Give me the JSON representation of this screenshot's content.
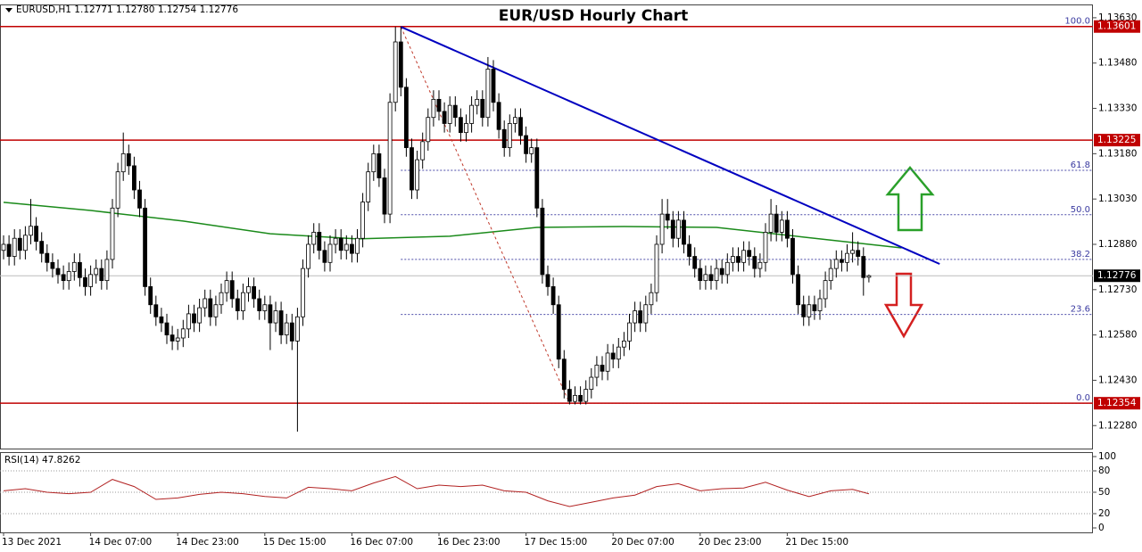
{
  "chart_data": {
    "type": "candlestick",
    "title": "EUR/USD Hourly Chart",
    "header": "EURUSD,H1  1.12771 1.12780 1.12754 1.12776",
    "ylim": [
      1.12204,
      1.13674
    ],
    "yticks": [
      {
        "value": 1.1363,
        "label": "1.13630"
      },
      {
        "value": 1.1348,
        "label": "1.13480"
      },
      {
        "value": 1.1333,
        "label": "1.13330"
      },
      {
        "value": 1.1318,
        "label": "1.13180"
      },
      {
        "value": 1.1303,
        "label": "1.13030"
      },
      {
        "value": 1.1288,
        "label": "1.12880"
      },
      {
        "value": 1.1273,
        "label": "1.12730"
      },
      {
        "value": 1.1258,
        "label": "1.12580"
      },
      {
        "value": 1.1243,
        "label": "1.12430"
      },
      {
        "value": 1.1228,
        "label": "1.12280"
      }
    ],
    "categories": [
      "13 Dec 2021",
      null,
      null,
      null,
      null,
      null,
      null,
      null,
      null,
      null,
      null,
      null,
      null,
      null,
      null,
      null,
      "14 Dec 07:00",
      null,
      null,
      null,
      null,
      null,
      null,
      null,
      null,
      null,
      null,
      null,
      null,
      null,
      null,
      null,
      "14 Dec 23:00",
      null,
      null,
      null,
      null,
      null,
      null,
      null,
      null,
      null,
      null,
      null,
      null,
      null,
      null,
      null,
      "15 Dec 15:00",
      null,
      null,
      null,
      null,
      null,
      null,
      null,
      null,
      null,
      null,
      null,
      null,
      null,
      null,
      null,
      "16 Dec 07:00",
      null,
      null,
      null,
      null,
      null,
      null,
      null,
      null,
      null,
      null,
      null,
      null,
      null,
      null,
      null,
      "16 Dec 23:00",
      null,
      null,
      null,
      null,
      null,
      null,
      null,
      null,
      null,
      null,
      null,
      null,
      null,
      null,
      null,
      "17 Dec 15:00",
      null,
      null,
      null,
      null,
      null,
      null,
      null,
      null,
      null,
      null,
      null,
      null,
      null,
      null,
      null,
      "20 Dec 07:00",
      null,
      null,
      null,
      null,
      null,
      null,
      null,
      null,
      null,
      null,
      null,
      null,
      null,
      null,
      null,
      "20 Dec 23:00",
      null,
      null,
      null,
      null,
      null,
      null,
      null,
      null,
      null,
      null,
      null,
      null,
      null,
      null,
      null,
      "21 Dec 15:00",
      null,
      null,
      null,
      null,
      null,
      null,
      null,
      null,
      null,
      null,
      null,
      null,
      null,
      null,
      null
    ],
    "values": [
      [
        1.1286,
        1.1291,
        1.1283,
        1.1288
      ],
      [
        1.1288,
        1.1291,
        1.1281,
        1.1284
      ],
      [
        1.1284,
        1.1293,
        1.1281,
        1.129
      ],
      [
        1.129,
        1.1293,
        1.1283,
        1.1286
      ],
      [
        1.1286,
        1.1294,
        1.1283,
        1.1291
      ],
      [
        1.1291,
        1.1303,
        1.1288,
        1.1294
      ],
      [
        1.1294,
        1.1297,
        1.1286,
        1.1289
      ],
      [
        1.1289,
        1.1292,
        1.1282,
        1.1285
      ],
      [
        1.1285,
        1.1288,
        1.1279,
        1.1282
      ],
      [
        1.1282,
        1.1285,
        1.1277,
        1.128
      ],
      [
        1.128,
        1.1283,
        1.1275,
        1.1278
      ],
      [
        1.1278,
        1.1281,
        1.1273,
        1.1276
      ],
      [
        1.1276,
        1.1282,
        1.1273,
        1.1279
      ],
      [
        1.1279,
        1.1285,
        1.1276,
        1.1282
      ],
      [
        1.1282,
        1.1285,
        1.1274,
        1.1277
      ],
      [
        1.1277,
        1.128,
        1.1271,
        1.1274
      ],
      [
        1.1274,
        1.1281,
        1.1271,
        1.1278
      ],
      [
        1.1278,
        1.1283,
        1.1275,
        1.128
      ],
      [
        1.128,
        1.1283,
        1.1273,
        1.1276
      ],
      [
        1.1276,
        1.1286,
        1.1273,
        1.1283
      ],
      [
        1.1283,
        1.1303,
        1.128,
        1.13
      ],
      [
        1.13,
        1.1315,
        1.1297,
        1.1312
      ],
      [
        1.1312,
        1.1325,
        1.1309,
        1.1318
      ],
      [
        1.1318,
        1.1321,
        1.1311,
        1.1314
      ],
      [
        1.1314,
        1.1317,
        1.1303,
        1.1306
      ],
      [
        1.1306,
        1.1309,
        1.1297,
        1.13
      ],
      [
        1.13,
        1.1303,
        1.1271,
        1.1274
      ],
      [
        1.1274,
        1.1277,
        1.1265,
        1.1268
      ],
      [
        1.1268,
        1.1271,
        1.1261,
        1.1264
      ],
      [
        1.1264,
        1.1267,
        1.1259,
        1.1262
      ],
      [
        1.1262,
        1.1265,
        1.1255,
        1.1258
      ],
      [
        1.1258,
        1.1261,
        1.1253,
        1.1256
      ],
      [
        1.1256,
        1.126,
        1.1253,
        1.1257
      ],
      [
        1.1257,
        1.1263,
        1.1254,
        1.126
      ],
      [
        1.126,
        1.1268,
        1.1257,
        1.1265
      ],
      [
        1.1265,
        1.1268,
        1.1259,
        1.1262
      ],
      [
        1.1262,
        1.127,
        1.1259,
        1.1267
      ],
      [
        1.1267,
        1.1273,
        1.1264,
        1.127
      ],
      [
        1.127,
        1.1273,
        1.1261,
        1.1264
      ],
      [
        1.1264,
        1.1271,
        1.1261,
        1.1268
      ],
      [
        1.1268,
        1.1275,
        1.1265,
        1.1272
      ],
      [
        1.1272,
        1.1279,
        1.1269,
        1.1276
      ],
      [
        1.1276,
        1.1279,
        1.1267,
        1.127
      ],
      [
        1.127,
        1.1273,
        1.1263,
        1.1266
      ],
      [
        1.1266,
        1.1275,
        1.1263,
        1.1272
      ],
      [
        1.1272,
        1.1277,
        1.1269,
        1.1274
      ],
      [
        1.1274,
        1.1277,
        1.1267,
        1.127
      ],
      [
        1.127,
        1.1273,
        1.1263,
        1.1266
      ],
      [
        1.1266,
        1.1271,
        1.1263,
        1.1268
      ],
      [
        1.1268,
        1.1271,
        1.1253,
        1.1262
      ],
      [
        1.1262,
        1.1269,
        1.1259,
        1.1266
      ],
      [
        1.1266,
        1.1269,
        1.1255,
        1.1258
      ],
      [
        1.1258,
        1.1265,
        1.1255,
        1.1262
      ],
      [
        1.1262,
        1.1265,
        1.1253,
        1.1256
      ],
      [
        1.1256,
        1.1267,
        1.1226,
        1.1264
      ],
      [
        1.1264,
        1.1283,
        1.1261,
        1.128
      ],
      [
        1.128,
        1.1291,
        1.1277,
        1.1288
      ],
      [
        1.1288,
        1.1295,
        1.1285,
        1.1292
      ],
      [
        1.1292,
        1.1295,
        1.1283,
        1.1286
      ],
      [
        1.1286,
        1.1289,
        1.1279,
        1.1282
      ],
      [
        1.1282,
        1.1291,
        1.1279,
        1.1288
      ],
      [
        1.1288,
        1.1293,
        1.1285,
        1.129
      ],
      [
        1.129,
        1.1293,
        1.1283,
        1.1286
      ],
      [
        1.1286,
        1.1291,
        1.1283,
        1.1288
      ],
      [
        1.1288,
        1.1291,
        1.1282,
        1.1285
      ],
      [
        1.1285,
        1.1293,
        1.1282,
        1.129
      ],
      [
        1.129,
        1.1305,
        1.1287,
        1.1302
      ],
      [
        1.1302,
        1.1315,
        1.1299,
        1.1312
      ],
      [
        1.1312,
        1.1321,
        1.1309,
        1.1318
      ],
      [
        1.1318,
        1.1321,
        1.1307,
        1.131
      ],
      [
        1.131,
        1.1313,
        1.1295,
        1.1298
      ],
      [
        1.1298,
        1.1338,
        1.1295,
        1.1335
      ],
      [
        1.1335,
        1.136,
        1.1332,
        1.1355
      ],
      [
        1.1355,
        1.136,
        1.1337,
        1.134
      ],
      [
        1.134,
        1.1343,
        1.1317,
        1.132
      ],
      [
        1.132,
        1.1323,
        1.1303,
        1.1306
      ],
      [
        1.1306,
        1.1319,
        1.1303,
        1.1316
      ],
      [
        1.1316,
        1.1325,
        1.1313,
        1.1322
      ],
      [
        1.1322,
        1.1333,
        1.1319,
        1.133
      ],
      [
        1.133,
        1.1339,
        1.1327,
        1.1336
      ],
      [
        1.1336,
        1.1339,
        1.1329,
        1.1332
      ],
      [
        1.1332,
        1.1335,
        1.1325,
        1.1328
      ],
      [
        1.1328,
        1.1337,
        1.1325,
        1.1334
      ],
      [
        1.1334,
        1.1337,
        1.1327,
        1.133
      ],
      [
        1.133,
        1.1333,
        1.1322,
        1.1325
      ],
      [
        1.1325,
        1.1331,
        1.1322,
        1.1328
      ],
      [
        1.1328,
        1.1337,
        1.1325,
        1.1334
      ],
      [
        1.1334,
        1.1339,
        1.1331,
        1.1336
      ],
      [
        1.1336,
        1.1339,
        1.1327,
        1.133
      ],
      [
        1.133,
        1.135,
        1.1327,
        1.1346
      ],
      [
        1.1346,
        1.1349,
        1.1332,
        1.1335
      ],
      [
        1.1335,
        1.1338,
        1.1323,
        1.1326
      ],
      [
        1.1326,
        1.1329,
        1.1317,
        1.132
      ],
      [
        1.132,
        1.1331,
        1.1317,
        1.1328
      ],
      [
        1.1328,
        1.1333,
        1.1325,
        1.133
      ],
      [
        1.133,
        1.1333,
        1.1321,
        1.1324
      ],
      [
        1.1324,
        1.1327,
        1.1315,
        1.1318
      ],
      [
        1.1318,
        1.1323,
        1.1315,
        1.132
      ],
      [
        1.132,
        1.1323,
        1.1297,
        1.13
      ],
      [
        1.13,
        1.1303,
        1.1275,
        1.1278
      ],
      [
        1.1278,
        1.1281,
        1.1271,
        1.1274
      ],
      [
        1.1274,
        1.1277,
        1.1265,
        1.1268
      ],
      [
        1.1268,
        1.1271,
        1.1247,
        1.125
      ],
      [
        1.125,
        1.1253,
        1.1237,
        1.124
      ],
      [
        1.124,
        1.1243,
        1.1235,
        1.1236
      ],
      [
        1.1236,
        1.1241,
        1.1235,
        1.1238
      ],
      [
        1.1238,
        1.1241,
        1.1235,
        1.1236
      ],
      [
        1.1236,
        1.1243,
        1.1235,
        1.124
      ],
      [
        1.124,
        1.1247,
        1.1237,
        1.1244
      ],
      [
        1.1244,
        1.1251,
        1.1241,
        1.1248
      ],
      [
        1.1248,
        1.1251,
        1.1243,
        1.1246
      ],
      [
        1.1246,
        1.1255,
        1.1243,
        1.1252
      ],
      [
        1.1252,
        1.1255,
        1.1247,
        1.125
      ],
      [
        1.125,
        1.1257,
        1.1247,
        1.1254
      ],
      [
        1.1254,
        1.1259,
        1.1251,
        1.1256
      ],
      [
        1.1256,
        1.1265,
        1.1253,
        1.1262
      ],
      [
        1.1262,
        1.1269,
        1.1259,
        1.1266
      ],
      [
        1.1266,
        1.1269,
        1.1259,
        1.1262
      ],
      [
        1.1262,
        1.1271,
        1.1259,
        1.1268
      ],
      [
        1.1268,
        1.1275,
        1.1265,
        1.1272
      ],
      [
        1.1272,
        1.1291,
        1.1269,
        1.1288
      ],
      [
        1.1288,
        1.1303,
        1.1285,
        1.1298
      ],
      [
        1.1298,
        1.1303,
        1.1293,
        1.1296
      ],
      [
        1.1296,
        1.1299,
        1.1287,
        1.129
      ],
      [
        1.129,
        1.1299,
        1.1287,
        1.1296
      ],
      [
        1.1296,
        1.1299,
        1.1285,
        1.1288
      ],
      [
        1.1288,
        1.1291,
        1.1281,
        1.1284
      ],
      [
        1.1284,
        1.1287,
        1.1277,
        1.128
      ],
      [
        1.128,
        1.1283,
        1.1273,
        1.1276
      ],
      [
        1.1276,
        1.1281,
        1.1273,
        1.1278
      ],
      [
        1.1278,
        1.1281,
        1.1273,
        1.1276
      ],
      [
        1.1276,
        1.1283,
        1.1273,
        1.128
      ],
      [
        1.128,
        1.1283,
        1.1275,
        1.1278
      ],
      [
        1.1278,
        1.1285,
        1.1275,
        1.1282
      ],
      [
        1.1282,
        1.1287,
        1.1279,
        1.1284
      ],
      [
        1.1284,
        1.1287,
        1.1279,
        1.1282
      ],
      [
        1.1282,
        1.1289,
        1.1279,
        1.1286
      ],
      [
        1.1286,
        1.1289,
        1.1281,
        1.1284
      ],
      [
        1.1284,
        1.1287,
        1.1277,
        1.128
      ],
      [
        1.128,
        1.1285,
        1.1277,
        1.1282
      ],
      [
        1.1282,
        1.1295,
        1.1279,
        1.1292
      ],
      [
        1.1292,
        1.1303,
        1.1289,
        1.1298
      ],
      [
        1.1298,
        1.1301,
        1.1289,
        1.1292
      ],
      [
        1.1292,
        1.1299,
        1.1289,
        1.1296
      ],
      [
        1.1296,
        1.1299,
        1.1287,
        1.129
      ],
      [
        1.129,
        1.1293,
        1.1275,
        1.1278
      ],
      [
        1.1278,
        1.1281,
        1.1265,
        1.1268
      ],
      [
        1.1268,
        1.1271,
        1.1261,
        1.1264
      ],
      [
        1.1264,
        1.1271,
        1.1261,
        1.1268
      ],
      [
        1.1268,
        1.1271,
        1.1263,
        1.1266
      ],
      [
        1.1266,
        1.1273,
        1.1263,
        1.127
      ],
      [
        1.127,
        1.1279,
        1.1267,
        1.1276
      ],
      [
        1.1276,
        1.1283,
        1.1273,
        1.128
      ],
      [
        1.128,
        1.1286,
        1.1277,
        1.1283
      ],
      [
        1.1283,
        1.1286,
        1.1279,
        1.1282
      ],
      [
        1.1282,
        1.1288,
        1.1279,
        1.1285
      ],
      [
        1.1285,
        1.1292,
        1.1282,
        1.1286
      ],
      [
        1.1286,
        1.1289,
        1.1281,
        1.1284
      ],
      [
        1.1284,
        1.1287,
        1.1271,
        1.1277
      ],
      [
        1.12771,
        1.1278,
        1.12754,
        1.12776
      ]
    ],
    "moving_average": {
      "color": "#1a8a1a",
      "x": [
        0,
        16,
        33,
        49,
        65,
        82,
        98,
        114,
        131,
        147,
        165
      ],
      "values": [
        1.13019,
        1.12992,
        1.12957,
        1.12915,
        1.12898,
        1.12907,
        1.12936,
        1.12939,
        1.12936,
        1.12904,
        1.12868
      ]
    },
    "trendline": {
      "color": "#0000c0",
      "x": [
        73,
        172
      ],
      "values": [
        1.136,
        1.12815
      ]
    },
    "swing_line": {
      "color": "#c0392b",
      "x": [
        73,
        104
      ],
      "values": [
        1.136,
        1.12354
      ]
    },
    "levels": [
      1.13601,
      1.13225,
      1.12354
    ],
    "level_color": "#c00000",
    "current_price": 1.12776,
    "fib_levels": [
      {
        "ratio": {
          "value": 100,
          "label": "100.0"
        },
        "price": 1.13601
      },
      {
        "ratio": 61.8,
        "price": 1.13125
      },
      {
        "ratio": {
          "value": 50,
          "label": "50.0"
        },
        "price": 1.12978
      },
      {
        "ratio": 38.2,
        "price": 1.1283
      },
      {
        "ratio": 23.6,
        "price": 1.12648
      },
      {
        "ratio": {
          "value": 0,
          "label": "0.0"
        },
        "price": 1.12354
      }
    ],
    "rsi": {
      "title": "RSI(14) 47.8262",
      "color": "#b22222",
      "ylim": [
        0,
        100
      ],
      "yticks": [
        100,
        80,
        50,
        20,
        0
      ],
      "x": [
        0,
        4,
        8,
        12,
        16,
        20,
        24,
        28,
        32,
        36,
        40,
        44,
        48,
        52,
        56,
        60,
        64,
        68,
        72,
        76,
        80,
        84,
        88,
        92,
        96,
        100,
        104,
        108,
        112,
        116,
        120,
        124,
        128,
        132,
        136,
        140,
        144,
        148,
        152,
        156,
        159
      ],
      "values": [
        52,
        55,
        50,
        48,
        50,
        68,
        58,
        40,
        42,
        47,
        50,
        48,
        44,
        42,
        57,
        55,
        52,
        63,
        72,
        55,
        60,
        58,
        60,
        52,
        50,
        38,
        30,
        36,
        42,
        46,
        58,
        62,
        52,
        55,
        56,
        64,
        53,
        44,
        52,
        54,
        47.8262
      ]
    }
  }
}
